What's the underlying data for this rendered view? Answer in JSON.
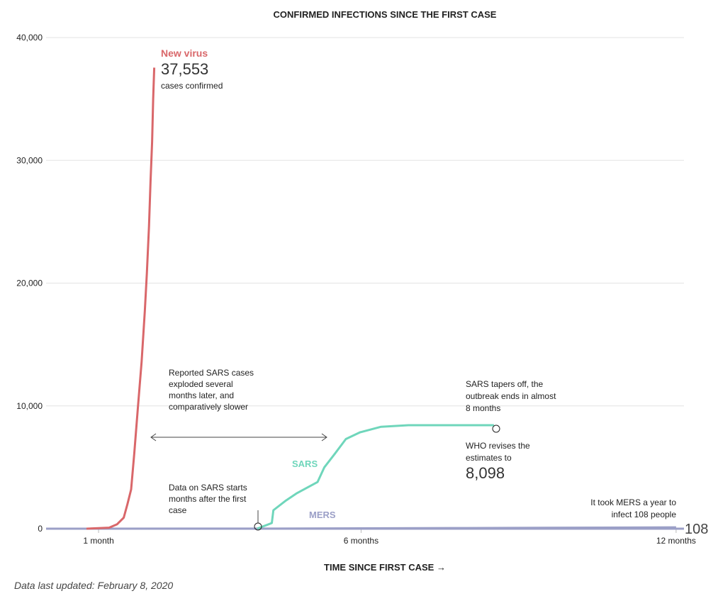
{
  "chart_data": {
    "type": "line",
    "title": "CONFIRMED INFECTIONS SINCE THE FIRST CASE",
    "xlabel": "TIME SINCE FIRST CASE →",
    "ylabel": "",
    "xlim": [
      0,
      12.15
    ],
    "ylim": [
      0,
      40000
    ],
    "grid": true,
    "yticks": [
      {
        "v": 0,
        "label": "0"
      },
      {
        "v": 10000,
        "label": "10,000"
      },
      {
        "v": 20000,
        "label": "20,000"
      },
      {
        "v": 30000,
        "label": "30,000"
      },
      {
        "v": 40000,
        "label": "40,000"
      }
    ],
    "xticks": [
      {
        "v": 1,
        "label": "1 month"
      },
      {
        "v": 6,
        "label": "6 months"
      },
      {
        "v": 12,
        "label": "12 months"
      }
    ],
    "series": [
      {
        "name": "New virus",
        "color": "#d9676a",
        "x": [
          0.77,
          1.2,
          1.35,
          1.48,
          1.55,
          1.62,
          1.68,
          1.75,
          1.82,
          1.88,
          1.92,
          1.96,
          1.99,
          2.02,
          2.04,
          2.06
        ],
        "y": [
          0,
          80,
          350,
          900,
          2000,
          3200,
          6100,
          9900,
          13600,
          17700,
          20800,
          24600,
          28300,
          31500,
          35000,
          37553
        ]
      },
      {
        "name": "SARS",
        "color": "#6fd6bb",
        "x": [
          4.02,
          4.3,
          4.33,
          4.57,
          4.78,
          5.17,
          5.3,
          5.5,
          5.71,
          5.98,
          6.38,
          6.9,
          8.53
        ],
        "y": [
          0,
          460,
          1500,
          2300,
          2900,
          3800,
          5000,
          6100,
          7300,
          7850,
          8300,
          8430,
          8430
        ]
      },
      {
        "name": "MERS",
        "color": "#9b9fc7",
        "x": [
          0,
          4,
          8,
          12
        ],
        "y": [
          0,
          5,
          50,
          108
        ]
      }
    ],
    "annotations": {
      "new_virus": {
        "label": "New virus",
        "value": "37,553",
        "sub": "cases confirmed"
      },
      "sars_label": "SARS",
      "mers_label": "MERS",
      "gap": [
        "Reported SARS cases",
        "exploded several",
        "months later, and",
        "comparatively slower"
      ],
      "sars_start": [
        "Data on SARS starts",
        "months after the first",
        "case"
      ],
      "sars_taper": [
        "SARS tapers off, the",
        "outbreak ends in almost",
        "8 months"
      ],
      "who": [
        "WHO revises the",
        "estimates to"
      ],
      "who_value": "8,098",
      "mers": [
        "It took MERS a year to",
        "infect 108 people"
      ],
      "mers_value": "108"
    },
    "footnote": "Data last updated: February 8, 2020"
  }
}
